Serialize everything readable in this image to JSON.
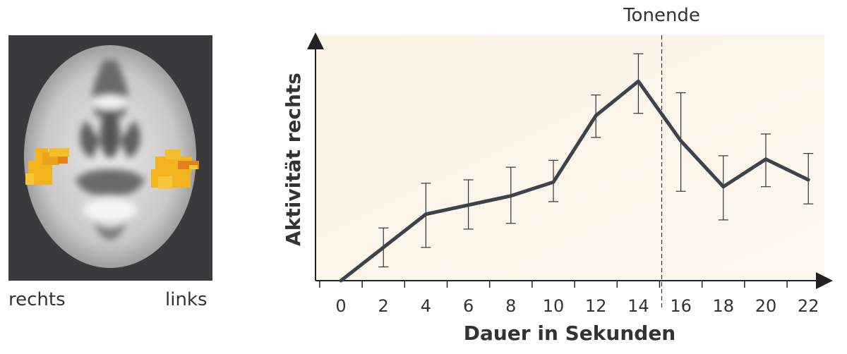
{
  "brain": {
    "label_right": "rechts",
    "label_left": "links",
    "colors": {
      "background": "#3a3a3c",
      "activation": "#f2b41d",
      "activation_edge": "#e4801a"
    }
  },
  "chart_data": {
    "type": "line",
    "x": [
      0,
      2,
      4,
      6,
      8,
      10,
      12,
      14,
      16,
      18,
      20,
      22
    ],
    "series": [
      {
        "values": [
          0.0,
          1.45,
          2.9,
          3.3,
          3.7,
          4.3,
          7.2,
          8.7,
          6.1,
          4.1,
          5.3,
          4.4
        ],
        "err_low": [
          0.0,
          0.85,
          1.45,
          1.05,
          1.2,
          0.85,
          0.95,
          1.4,
          2.2,
          1.45,
          1.2,
          1.05
        ],
        "err_high": [
          0.0,
          0.85,
          1.35,
          1.1,
          1.25,
          0.95,
          0.9,
          1.2,
          2.1,
          1.35,
          1.1,
          1.15
        ],
        "color": "#3d4449"
      }
    ],
    "xlabel": "Dauer in Sekunden",
    "ylabel": "Aktivität rechts",
    "xlim": [
      -1,
      23
    ],
    "ylim": [
      0,
      10
    ],
    "xticks": [
      "0",
      "2",
      "4",
      "6",
      "8",
      "10",
      "12",
      "14",
      "16",
      "18",
      "20",
      "22"
    ],
    "annotations": [
      {
        "text": "Tonende",
        "x": 15.1,
        "style": "dashed-vertical-line"
      }
    ],
    "grid": false,
    "background_color": "#fbf3e6",
    "axis_color": "#222222"
  }
}
